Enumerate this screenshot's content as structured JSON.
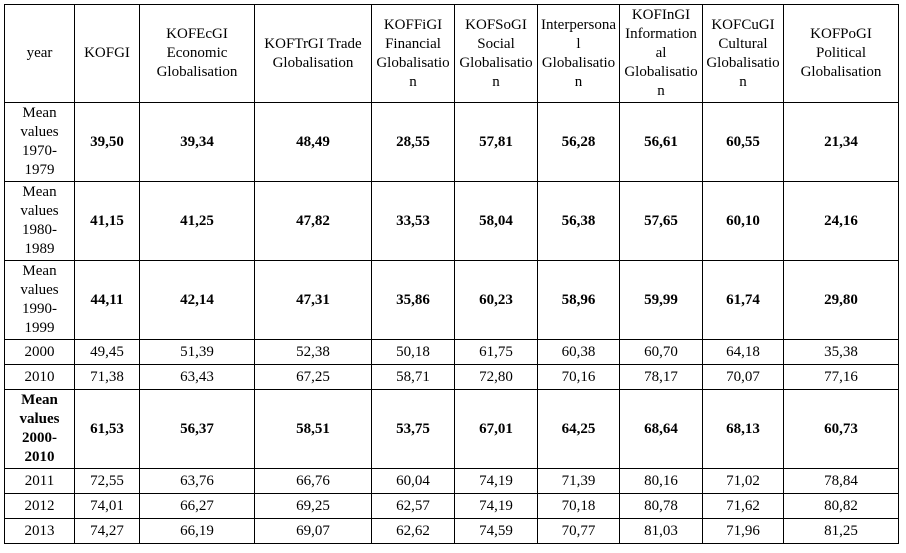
{
  "table": {
    "header": [
      "year",
      "KOFGI",
      "KOFEcGI Economic Globalisation",
      "KOFTrGI Trade Globalisation",
      "KOFFiGI Financial Globalisation",
      "KOFSoGI Social Globalisation",
      "Interpersonal Globalisation",
      "KOFInGI Informational Globalisation",
      "KOFCuGI Cultural Globalisation",
      "KOFPoGI Political Globalisation"
    ],
    "rows": [
      [
        "Mean values 1970-1979",
        "39,50",
        "39,34",
        "48,49",
        "28,55",
        "57,81",
        "56,28",
        "56,61",
        "60,55",
        "21,34"
      ],
      [
        "Mean values 1980-1989",
        "41,15",
        "41,25",
        "47,82",
        "33,53",
        "58,04",
        "56,38",
        "57,65",
        "60,10",
        "24,16"
      ],
      [
        "Mean values 1990-1999",
        "44,11",
        "42,14",
        "47,31",
        "35,86",
        "60,23",
        "58,96",
        "59,99",
        "61,74",
        "29,80"
      ],
      [
        "2000",
        "49,45",
        "51,39",
        "52,38",
        "50,18",
        "61,75",
        "60,38",
        "60,70",
        "64,18",
        "35,38"
      ],
      [
        "2010",
        "71,38",
        "63,43",
        "67,25",
        "58,71",
        "72,80",
        "70,16",
        "78,17",
        "70,07",
        "77,16"
      ],
      [
        "Mean values 2000-2010",
        "61,53",
        "56,37",
        "58,51",
        "53,75",
        "67,01",
        "64,25",
        "68,64",
        "68,13",
        "60,73"
      ],
      [
        "2011",
        "72,55",
        "63,76",
        "66,76",
        "60,04",
        "74,19",
        "71,39",
        "80,16",
        "71,02",
        "78,84"
      ],
      [
        "2012",
        "74,01",
        "66,27",
        "69,25",
        "62,57",
        "74,19",
        "70,18",
        "80,78",
        "71,62",
        "80,82"
      ],
      [
        "2013",
        "74,27",
        "66,19",
        "69,07",
        "62,62",
        "74,59",
        "70,77",
        "81,03",
        "71,96",
        "81,25"
      ]
    ]
  }
}
